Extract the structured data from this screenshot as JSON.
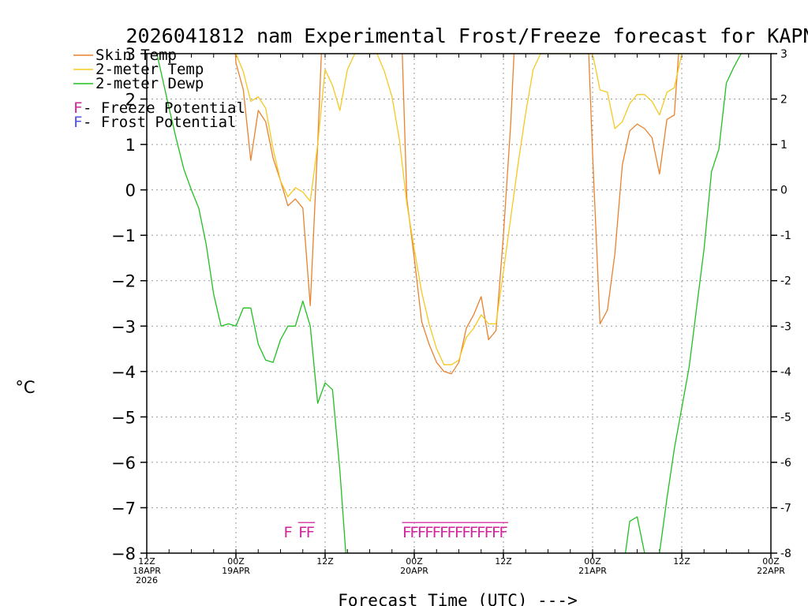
{
  "chart_data": {
    "type": "line",
    "title": "2026041812 nam Experimental Frost/Freeze forecast for KAPN",
    "xlabel": "Forecast Time (UTC) --->",
    "ylabel": "°C",
    "ylim": [
      -8,
      3
    ],
    "xlim_hours": [
      0,
      84
    ],
    "grid": true,
    "y_ticks": [
      3,
      2,
      1,
      0,
      -1,
      -2,
      -3,
      -4,
      -5,
      -6,
      -7,
      -8
    ],
    "y_ticks_left_labels": [
      "3",
      "2",
      "1",
      "0",
      "−1",
      "−2",
      "−3",
      "−4",
      "−5",
      "−6",
      "−7",
      "−8"
    ],
    "x_ticks": [
      {
        "hour": 0,
        "l1": "12Z",
        "l2": "18APR",
        "l3": "2026"
      },
      {
        "hour": 12,
        "l1": "00Z",
        "l2": "19APR",
        "l3": ""
      },
      {
        "hour": 24,
        "l1": "12Z",
        "l2": "",
        "l3": ""
      },
      {
        "hour": 36,
        "l1": "00Z",
        "l2": "20APR",
        "l3": ""
      },
      {
        "hour": 48,
        "l1": "12Z",
        "l2": "",
        "l3": ""
      },
      {
        "hour": 60,
        "l1": "00Z",
        "l2": "21APR",
        "l3": ""
      },
      {
        "hour": 72,
        "l1": "12Z",
        "l2": "",
        "l3": ""
      },
      {
        "hour": 84,
        "l1": "00Z",
        "l2": "22APR",
        "l3": ""
      }
    ],
    "legend": [
      {
        "label": "Skin Temp",
        "color": "#e8822e"
      },
      {
        "label": "2-meter Temp",
        "color": "#f5c820"
      },
      {
        "label": "2-meter Dewp",
        "color": "#20c020"
      }
    ],
    "potential_legend": [
      {
        "marker": "F",
        "text": " - Freeze Potential",
        "color": "#d0259a"
      },
      {
        "marker": "F",
        "text": " - Frost Potential",
        "color": "#5050ee"
      }
    ],
    "series": [
      {
        "name": "Skin Temp",
        "color": "#e8822e",
        "points": [
          [
            11,
            5.5
          ],
          [
            12,
            2.8
          ],
          [
            13,
            2.2
          ],
          [
            14,
            0.65
          ],
          [
            15,
            1.75
          ],
          [
            16,
            1.5
          ],
          [
            17,
            0.7
          ],
          [
            18,
            0.2
          ],
          [
            19,
            -0.35
          ],
          [
            20,
            -0.2
          ],
          [
            21,
            -0.4
          ],
          [
            22,
            -2.55
          ],
          [
            23,
            1.0
          ],
          [
            24,
            5.0
          ],
          [
            34,
            5.0
          ],
          [
            35,
            -0.2
          ],
          [
            36,
            -1.5
          ],
          [
            37,
            -2.9
          ],
          [
            38,
            -3.4
          ],
          [
            39,
            -3.8
          ],
          [
            40,
            -4.0
          ],
          [
            41,
            -4.05
          ],
          [
            42,
            -3.8
          ],
          [
            43,
            -3.05
          ],
          [
            44,
            -2.75
          ],
          [
            45,
            -2.35
          ],
          [
            46,
            -3.3
          ],
          [
            47,
            -3.1
          ],
          [
            48,
            -1.0
          ],
          [
            49,
            1.5
          ],
          [
            50,
            5.0
          ],
          [
            59,
            5.0
          ],
          [
            60,
            0.8
          ],
          [
            61,
            -2.95
          ],
          [
            62,
            -2.65
          ],
          [
            63,
            -1.4
          ],
          [
            64,
            0.55
          ],
          [
            65,
            1.3
          ],
          [
            66,
            1.45
          ],
          [
            67,
            1.35
          ],
          [
            68,
            1.15
          ],
          [
            69,
            0.35
          ],
          [
            70,
            1.55
          ],
          [
            71,
            1.65
          ],
          [
            72,
            4.0
          ]
        ]
      },
      {
        "name": "2-meter Temp",
        "color": "#f5c820",
        "points": [
          [
            12,
            3.0
          ],
          [
            13,
            2.6
          ],
          [
            14,
            1.95
          ],
          [
            15,
            2.05
          ],
          [
            16,
            1.8
          ],
          [
            17,
            0.9
          ],
          [
            18,
            0.2
          ],
          [
            19,
            -0.15
          ],
          [
            20,
            0.05
          ],
          [
            21,
            -0.05
          ],
          [
            22,
            -0.25
          ],
          [
            23,
            1.0
          ],
          [
            24,
            2.65
          ],
          [
            25,
            2.3
          ],
          [
            26,
            1.75
          ],
          [
            27,
            2.65
          ],
          [
            28,
            3.0
          ],
          [
            31,
            3.0
          ],
          [
            32,
            2.6
          ],
          [
            33,
            2.05
          ],
          [
            34,
            1.1
          ],
          [
            35,
            -0.3
          ],
          [
            36,
            -1.3
          ],
          [
            37,
            -2.25
          ],
          [
            38,
            -2.95
          ],
          [
            39,
            -3.5
          ],
          [
            40,
            -3.85
          ],
          [
            41,
            -3.85
          ],
          [
            42,
            -3.75
          ],
          [
            43,
            -3.25
          ],
          [
            44,
            -3.05
          ],
          [
            45,
            -2.75
          ],
          [
            46,
            -2.95
          ],
          [
            47,
            -2.95
          ],
          [
            48,
            -1.8
          ],
          [
            49,
            -0.6
          ],
          [
            50,
            0.6
          ],
          [
            51,
            1.7
          ],
          [
            52,
            2.65
          ],
          [
            53,
            3.0
          ],
          [
            60,
            3.0
          ],
          [
            61,
            2.2
          ],
          [
            62,
            2.15
          ],
          [
            63,
            1.35
          ],
          [
            64,
            1.5
          ],
          [
            65,
            1.9
          ],
          [
            66,
            2.1
          ],
          [
            67,
            2.1
          ],
          [
            68,
            1.95
          ],
          [
            69,
            1.65
          ],
          [
            70,
            2.15
          ],
          [
            71,
            2.25
          ],
          [
            72,
            3.0
          ]
        ]
      },
      {
        "name": "2-meter Dewp",
        "color": "#20c020",
        "points": [
          [
            0,
            4.0
          ],
          [
            3,
            1.8
          ],
          [
            4,
            1.1
          ],
          [
            5,
            0.45
          ],
          [
            6,
            0.0
          ],
          [
            7,
            -0.4
          ],
          [
            8,
            -1.2
          ],
          [
            9,
            -2.3
          ],
          [
            10,
            -3.0
          ],
          [
            11,
            -2.95
          ],
          [
            12,
            -3.0
          ],
          [
            13,
            -2.6
          ],
          [
            14,
            -2.6
          ],
          [
            15,
            -3.4
          ],
          [
            16,
            -3.75
          ],
          [
            17,
            -3.8
          ],
          [
            18,
            -3.3
          ],
          [
            19,
            -3.0
          ],
          [
            20,
            -3.0
          ],
          [
            21,
            -2.45
          ],
          [
            22,
            -3.0
          ],
          [
            23,
            -4.7
          ],
          [
            24,
            -4.25
          ],
          [
            25,
            -4.4
          ],
          [
            26,
            -6.2
          ],
          [
            27,
            -8.5
          ],
          [
            64,
            -8.5
          ],
          [
            65,
            -7.3
          ],
          [
            66,
            -7.2
          ],
          [
            67,
            -8.0
          ],
          [
            68,
            -8.5
          ],
          [
            69,
            -8.0
          ],
          [
            70,
            -6.8
          ],
          [
            71,
            -5.7
          ],
          [
            72,
            -4.8
          ],
          [
            73,
            -3.9
          ],
          [
            74,
            -2.6
          ],
          [
            75,
            -1.3
          ],
          [
            76,
            0.4
          ],
          [
            77,
            0.9
          ],
          [
            78,
            2.35
          ],
          [
            79,
            2.7
          ],
          [
            80,
            3.0
          ],
          [
            81,
            4.0
          ]
        ]
      }
    ],
    "freeze_markers": {
      "color": "#d0259a",
      "y": -7.5,
      "hours": [
        19,
        21,
        22,
        35,
        36,
        37,
        38,
        39,
        40,
        41,
        42,
        43,
        44,
        45,
        46,
        47,
        48
      ]
    }
  }
}
